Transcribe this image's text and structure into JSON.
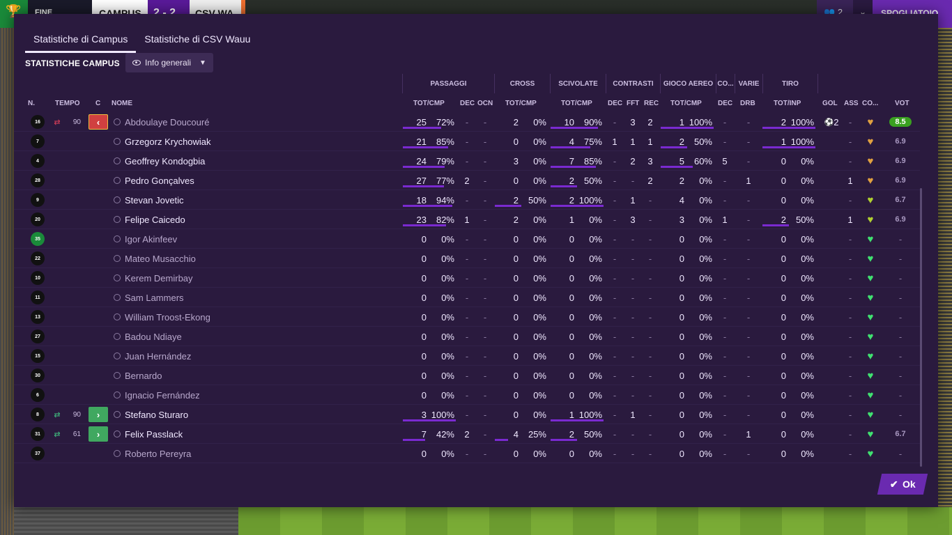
{
  "topbar": {
    "result_label": "FINE PARTITA",
    "team1": "CAMPUS",
    "score": "2 - 2",
    "team2": "CSV WA",
    "people_count": "2",
    "action_label": "SPOGLIATOIO"
  },
  "tabs": [
    "Statistiche di Campus",
    "Statistiche di CSV Wauu"
  ],
  "section_title": "STATISTICHE CAMPUS",
  "filter_label": "Info generali",
  "groups": [
    "PASSAGGI",
    "CROSS",
    "SCIVOLATE",
    "CONTRASTI",
    "GIOCO AEREO",
    "CO...",
    "VARIE",
    "TIRO"
  ],
  "columns": {
    "num": "N.",
    "tempo": "TEMPO",
    "c": "C",
    "nome": "NOME",
    "pass": "TOT/CMP",
    "dec": "DEC",
    "ocn": "OCN",
    "cross": "TOT/CMP",
    "scivolate": "TOT/CMP",
    "c_dec": "DEC",
    "fft": "FFT",
    "rec": "REC",
    "aereo": "TOT/CMP",
    "co_dec": "DEC",
    "drb": "DRB",
    "tiro": "TOT/INP",
    "gol": "GOL",
    "ass": "ASS",
    "co": "CO...",
    "vot": "VOT"
  },
  "players": [
    {
      "num": "16",
      "sub": "out",
      "tempo": "90",
      "name": "Abdoulaye Doucouré",
      "dim": true,
      "pass": [
        "25",
        "72%"
      ],
      "pdec": "-",
      "ocn": "-",
      "cross": [
        "2",
        "0%"
      ],
      "sciv": [
        "10",
        "90%"
      ],
      "cdec": "-",
      "fft": "3",
      "rec": "2",
      "aereo": [
        "1",
        "100%"
      ],
      "codec": "-",
      "drb": "-",
      "tiro": [
        "2",
        "100%"
      ],
      "gol": "2",
      "ass": "-",
      "heart": "gold",
      "vot": "8.5",
      "top": true,
      "bars": {
        "pass": 0.72,
        "sciv": 0.9,
        "aereo": 1,
        "tiro": 1
      }
    },
    {
      "num": "7",
      "sub": "",
      "tempo": "",
      "name": "Grzegorz Krychowiak",
      "dim": false,
      "pass": [
        "21",
        "85%"
      ],
      "pdec": "-",
      "ocn": "-",
      "cross": [
        "0",
        "0%"
      ],
      "sciv": [
        "4",
        "75%"
      ],
      "cdec": "1",
      "fft": "1",
      "rec": "1",
      "aereo": [
        "2",
        "50%"
      ],
      "codec": "-",
      "drb": "-",
      "tiro": [
        "1",
        "100%"
      ],
      "gol": "",
      "ass": "-",
      "heart": "gold",
      "vot": "6.9",
      "top": false,
      "bars": {
        "pass": 0.85,
        "sciv": 0.75,
        "aereo": 0.5,
        "tiro": 1
      }
    },
    {
      "num": "4",
      "sub": "",
      "tempo": "",
      "name": "Geoffrey Kondogbia",
      "dim": false,
      "pass": [
        "24",
        "79%"
      ],
      "pdec": "-",
      "ocn": "-",
      "cross": [
        "3",
        "0%"
      ],
      "sciv": [
        "7",
        "85%"
      ],
      "cdec": "-",
      "fft": "2",
      "rec": "3",
      "aereo": [
        "5",
        "60%"
      ],
      "codec": "5",
      "drb": "-",
      "tiro": [
        "0",
        "0%"
      ],
      "gol": "",
      "ass": "-",
      "heart": "gold",
      "vot": "6.9",
      "top": false,
      "bars": {
        "pass": 0.79,
        "sciv": 0.85,
        "aereo": 0.6
      }
    },
    {
      "num": "28",
      "sub": "",
      "tempo": "",
      "name": "Pedro Gonçalves",
      "dim": false,
      "pass": [
        "27",
        "77%"
      ],
      "pdec": "2",
      "ocn": "-",
      "cross": [
        "0",
        "0%"
      ],
      "sciv": [
        "2",
        "50%"
      ],
      "cdec": "-",
      "fft": "-",
      "rec": "2",
      "aereo": [
        "2",
        "0%"
      ],
      "codec": "-",
      "drb": "1",
      "tiro": [
        "0",
        "0%"
      ],
      "gol": "",
      "ass": "1",
      "heart": "gold",
      "vot": "6.9",
      "top": false,
      "bars": {
        "pass": 0.77,
        "sciv": 0.5
      }
    },
    {
      "num": "9",
      "sub": "",
      "tempo": "",
      "name": "Stevan Jovetic",
      "dim": false,
      "pass": [
        "18",
        "94%"
      ],
      "pdec": "-",
      "ocn": "-",
      "cross": [
        "2",
        "50%"
      ],
      "sciv": [
        "2",
        "100%"
      ],
      "cdec": "-",
      "fft": "1",
      "rec": "-",
      "aereo": [
        "4",
        "0%"
      ],
      "codec": "-",
      "drb": "-",
      "tiro": [
        "0",
        "0%"
      ],
      "gol": "",
      "ass": "-",
      "heart": "yellowgreen",
      "vot": "6.7",
      "top": false,
      "bars": {
        "pass": 0.94,
        "cross": 0.5,
        "sciv": 1
      }
    },
    {
      "num": "20",
      "sub": "",
      "tempo": "",
      "name": "Felipe Caicedo",
      "dim": false,
      "pass": [
        "23",
        "82%"
      ],
      "pdec": "1",
      "ocn": "-",
      "cross": [
        "2",
        "0%"
      ],
      "sciv": [
        "1",
        "0%"
      ],
      "cdec": "-",
      "fft": "3",
      "rec": "-",
      "aereo": [
        "3",
        "0%"
      ],
      "codec": "1",
      "drb": "-",
      "tiro": [
        "2",
        "50%"
      ],
      "gol": "",
      "ass": "1",
      "heart": "yellowgreen",
      "vot": "6.9",
      "top": false,
      "bars": {
        "pass": 0.82,
        "tiro": 0.5
      }
    },
    {
      "num": "35",
      "sub": "",
      "tempo": "",
      "name": "Igor Akinfeev",
      "dim": true,
      "gk": true,
      "pass": [
        "0",
        "0%"
      ],
      "pdec": "-",
      "ocn": "-",
      "cross": [
        "0",
        "0%"
      ],
      "sciv": [
        "0",
        "0%"
      ],
      "cdec": "-",
      "fft": "-",
      "rec": "-",
      "aereo": [
        "0",
        "0%"
      ],
      "codec": "-",
      "drb": "-",
      "tiro": [
        "0",
        "0%"
      ],
      "gol": "",
      "ass": "-",
      "heart": "green",
      "vot": "-",
      "top": false,
      "bars": {}
    },
    {
      "num": "22",
      "sub": "",
      "tempo": "",
      "name": "Mateo Musacchio",
      "dim": true,
      "pass": [
        "0",
        "0%"
      ],
      "pdec": "-",
      "ocn": "-",
      "cross": [
        "0",
        "0%"
      ],
      "sciv": [
        "0",
        "0%"
      ],
      "cdec": "-",
      "fft": "-",
      "rec": "-",
      "aereo": [
        "0",
        "0%"
      ],
      "codec": "-",
      "drb": "-",
      "tiro": [
        "0",
        "0%"
      ],
      "gol": "",
      "ass": "-",
      "heart": "green",
      "vot": "-",
      "top": false,
      "bars": {}
    },
    {
      "num": "10",
      "sub": "",
      "tempo": "",
      "name": "Kerem Demirbay",
      "dim": true,
      "pass": [
        "0",
        "0%"
      ],
      "pdec": "-",
      "ocn": "-",
      "cross": [
        "0",
        "0%"
      ],
      "sciv": [
        "0",
        "0%"
      ],
      "cdec": "-",
      "fft": "-",
      "rec": "-",
      "aereo": [
        "0",
        "0%"
      ],
      "codec": "-",
      "drb": "-",
      "tiro": [
        "0",
        "0%"
      ],
      "gol": "",
      "ass": "-",
      "heart": "green",
      "vot": "-",
      "top": false,
      "bars": {}
    },
    {
      "num": "11",
      "sub": "",
      "tempo": "",
      "name": "Sam Lammers",
      "dim": true,
      "pass": [
        "0",
        "0%"
      ],
      "pdec": "-",
      "ocn": "-",
      "cross": [
        "0",
        "0%"
      ],
      "sciv": [
        "0",
        "0%"
      ],
      "cdec": "-",
      "fft": "-",
      "rec": "-",
      "aereo": [
        "0",
        "0%"
      ],
      "codec": "-",
      "drb": "-",
      "tiro": [
        "0",
        "0%"
      ],
      "gol": "",
      "ass": "-",
      "heart": "green",
      "vot": "-",
      "top": false,
      "bars": {}
    },
    {
      "num": "13",
      "sub": "",
      "tempo": "",
      "name": "William Troost-Ekong",
      "dim": true,
      "pass": [
        "0",
        "0%"
      ],
      "pdec": "-",
      "ocn": "-",
      "cross": [
        "0",
        "0%"
      ],
      "sciv": [
        "0",
        "0%"
      ],
      "cdec": "-",
      "fft": "-",
      "rec": "-",
      "aereo": [
        "0",
        "0%"
      ],
      "codec": "-",
      "drb": "-",
      "tiro": [
        "0",
        "0%"
      ],
      "gol": "",
      "ass": "-",
      "heart": "green",
      "vot": "-",
      "top": false,
      "bars": {}
    },
    {
      "num": "27",
      "sub": "",
      "tempo": "",
      "name": "Badou Ndiaye",
      "dim": true,
      "pass": [
        "0",
        "0%"
      ],
      "pdec": "-",
      "ocn": "-",
      "cross": [
        "0",
        "0%"
      ],
      "sciv": [
        "0",
        "0%"
      ],
      "cdec": "-",
      "fft": "-",
      "rec": "-",
      "aereo": [
        "0",
        "0%"
      ],
      "codec": "-",
      "drb": "-",
      "tiro": [
        "0",
        "0%"
      ],
      "gol": "",
      "ass": "-",
      "heart": "green",
      "vot": "-",
      "top": false,
      "bars": {}
    },
    {
      "num": "15",
      "sub": "",
      "tempo": "",
      "name": "Juan Hernández",
      "dim": true,
      "pass": [
        "0",
        "0%"
      ],
      "pdec": "-",
      "ocn": "-",
      "cross": [
        "0",
        "0%"
      ],
      "sciv": [
        "0",
        "0%"
      ],
      "cdec": "-",
      "fft": "-",
      "rec": "-",
      "aereo": [
        "0",
        "0%"
      ],
      "codec": "-",
      "drb": "-",
      "tiro": [
        "0",
        "0%"
      ],
      "gol": "",
      "ass": "-",
      "heart": "green",
      "vot": "-",
      "top": false,
      "bars": {}
    },
    {
      "num": "30",
      "sub": "",
      "tempo": "",
      "name": "Bernardo",
      "dim": true,
      "pass": [
        "0",
        "0%"
      ],
      "pdec": "-",
      "ocn": "-",
      "cross": [
        "0",
        "0%"
      ],
      "sciv": [
        "0",
        "0%"
      ],
      "cdec": "-",
      "fft": "-",
      "rec": "-",
      "aereo": [
        "0",
        "0%"
      ],
      "codec": "-",
      "drb": "-",
      "tiro": [
        "0",
        "0%"
      ],
      "gol": "",
      "ass": "-",
      "heart": "green",
      "vot": "-",
      "top": false,
      "bars": {}
    },
    {
      "num": "6",
      "sub": "",
      "tempo": "",
      "name": "Ignacio Fernández",
      "dim": true,
      "pass": [
        "0",
        "0%"
      ],
      "pdec": "-",
      "ocn": "-",
      "cross": [
        "0",
        "0%"
      ],
      "sciv": [
        "0",
        "0%"
      ],
      "cdec": "-",
      "fft": "-",
      "rec": "-",
      "aereo": [
        "0",
        "0%"
      ],
      "codec": "-",
      "drb": "-",
      "tiro": [
        "0",
        "0%"
      ],
      "gol": "",
      "ass": "-",
      "heart": "green",
      "vot": "-",
      "top": false,
      "bars": {}
    },
    {
      "num": "8",
      "sub": "in",
      "tempo": "90",
      "name": "Stefano Sturaro",
      "dim": false,
      "pass": [
        "3",
        "100%"
      ],
      "pdec": "-",
      "ocn": "-",
      "cross": [
        "0",
        "0%"
      ],
      "sciv": [
        "1",
        "100%"
      ],
      "cdec": "-",
      "fft": "1",
      "rec": "-",
      "aereo": [
        "0",
        "0%"
      ],
      "codec": "-",
      "drb": "-",
      "tiro": [
        "0",
        "0%"
      ],
      "gol": "",
      "ass": "-",
      "heart": "green",
      "vot": "-",
      "top": false,
      "bars": {
        "pass": 1,
        "sciv": 1
      }
    },
    {
      "num": "31",
      "sub": "in",
      "tempo": "61",
      "name": "Felix Passlack",
      "dim": false,
      "pass": [
        "7",
        "42%"
      ],
      "pdec": "2",
      "ocn": "-",
      "cross": [
        "4",
        "25%"
      ],
      "sciv": [
        "2",
        "50%"
      ],
      "cdec": "-",
      "fft": "-",
      "rec": "-",
      "aereo": [
        "0",
        "0%"
      ],
      "codec": "-",
      "drb": "1",
      "tiro": [
        "0",
        "0%"
      ],
      "gol": "",
      "ass": "-",
      "heart": "green",
      "vot": "6.7",
      "top": false,
      "bars": {
        "pass": 0.42,
        "cross": 0.25,
        "sciv": 0.5
      }
    },
    {
      "num": "37",
      "sub": "",
      "tempo": "",
      "name": "Roberto Pereyra",
      "dim": true,
      "pass": [
        "0",
        "0%"
      ],
      "pdec": "-",
      "ocn": "-",
      "cross": [
        "0",
        "0%"
      ],
      "sciv": [
        "0",
        "0%"
      ],
      "cdec": "-",
      "fft": "-",
      "rec": "-",
      "aereo": [
        "0",
        "0%"
      ],
      "codec": "-",
      "drb": "-",
      "tiro": [
        "0",
        "0%"
      ],
      "gol": "",
      "ass": "-",
      "heart": "green",
      "vot": "-",
      "top": false,
      "bars": {}
    }
  ],
  "ok_label": "Ok",
  "colors": {
    "accent": "#6a2ab0",
    "panel": "#2a1a3e",
    "bar": "#7a2ad0",
    "top_rating": "#3aa020"
  }
}
